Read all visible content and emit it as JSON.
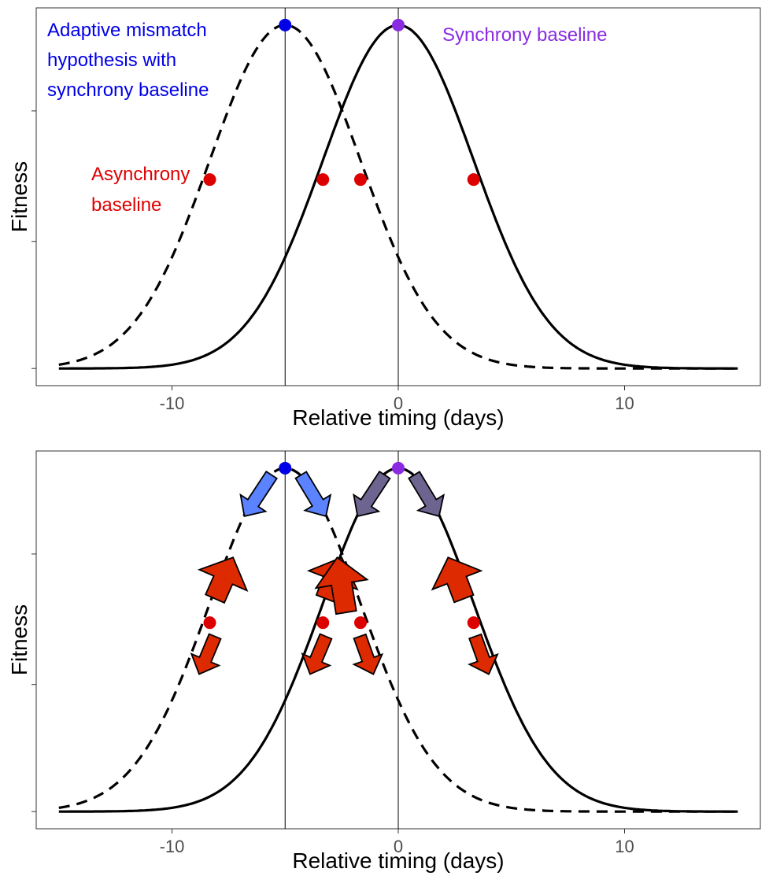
{
  "chart_data": [
    {
      "type": "line",
      "panel": "top",
      "xlabel": "Relative timing (days)",
      "ylabel": "Fitness",
      "xlim": [
        -16,
        16
      ],
      "ylim": [
        -0.05,
        1.05
      ],
      "x_ticks": [
        -10,
        0,
        10
      ],
      "x_tick_labels": [
        "-10",
        "0",
        "10"
      ],
      "y_ticks": [
        0,
        0.37,
        0.75
      ],
      "grid": false,
      "vlines": [
        -5,
        0
      ],
      "series": [
        {
          "style": "solid",
          "curve": "gaussian",
          "mean": 0,
          "sd": 3.33,
          "peak": 1,
          "x_range": [
            -15,
            15
          ],
          "color": "#000000"
        },
        {
          "style": "dashed",
          "curve": "gaussian",
          "mean": -5,
          "sd": 3.33,
          "peak": 1,
          "x_range": [
            -15,
            15
          ],
          "color": "#000000"
        }
      ],
      "points": [
        {
          "x": -5,
          "y": 1,
          "color": "#0000e6"
        },
        {
          "x": 0,
          "y": 1,
          "color": "#8a2be2"
        },
        {
          "x": -8.33,
          "y": 0.55,
          "color": "#dd0000"
        },
        {
          "x": -3.33,
          "y": 0.55,
          "color": "#dd0000"
        },
        {
          "x": -1.67,
          "y": 0.55,
          "color": "#dd0000"
        },
        {
          "x": 3.33,
          "y": 0.55,
          "color": "#dd0000"
        }
      ],
      "annotations": [
        {
          "lines": [
            "Adaptive mismatch",
            "hypothesis with",
            "synchrony baseline"
          ],
          "color": "#0000e6"
        },
        {
          "lines": [
            "Synchrony baseline"
          ],
          "color": "#8a2be2"
        },
        {
          "lines": [
            "Asynchrony",
            "baseline"
          ],
          "color": "#dd0000"
        }
      ]
    },
    {
      "type": "line",
      "panel": "bottom",
      "xlabel": "Relative timing (days)",
      "ylabel": "Fitness",
      "xlim": [
        -16,
        16
      ],
      "ylim": [
        -0.05,
        1.05
      ],
      "x_ticks": [
        -10,
        0,
        10
      ],
      "x_tick_labels": [
        "-10",
        "0",
        "10"
      ],
      "y_ticks": [
        0,
        0.37,
        0.75
      ],
      "grid": false,
      "vlines": [
        -5,
        0
      ],
      "series": [
        {
          "style": "solid",
          "curve": "gaussian",
          "mean": 0,
          "sd": 3.33,
          "peak": 1,
          "x_range": [
            -15,
            15
          ],
          "color": "#000000"
        },
        {
          "style": "dashed",
          "curve": "gaussian",
          "mean": -5,
          "sd": 3.33,
          "peak": 1,
          "x_range": [
            -15,
            15
          ],
          "color": "#000000"
        }
      ],
      "points": [
        {
          "x": -5,
          "y": 1,
          "color": "#0000e6"
        },
        {
          "x": 0,
          "y": 1,
          "color": "#8a2be2"
        },
        {
          "x": -8.33,
          "y": 0.55,
          "color": "#dd0000"
        },
        {
          "x": -3.33,
          "y": 0.55,
          "color": "#dd0000"
        },
        {
          "x": -1.67,
          "y": 0.55,
          "color": "#dd0000"
        },
        {
          "x": 3.33,
          "y": 0.55,
          "color": "#dd0000"
        }
      ],
      "arrows": [
        {
          "from": [
            -5.6,
            0.98
          ],
          "to": [
            -6.8,
            0.86
          ],
          "color": "#5b82ff",
          "size": "small"
        },
        {
          "from": [
            -4.3,
            0.98
          ],
          "to": [
            -3.2,
            0.86
          ],
          "color": "#5b82ff",
          "size": "small"
        },
        {
          "from": [
            -0.6,
            0.98
          ],
          "to": [
            -1.8,
            0.86
          ],
          "color": "#6e6490",
          "size": "small"
        },
        {
          "from": [
            0.7,
            0.98
          ],
          "to": [
            1.8,
            0.86
          ],
          "color": "#6e6490",
          "size": "small"
        },
        {
          "from": [
            -8.1,
            0.62
          ],
          "to": [
            -7.3,
            0.74
          ],
          "color": "#dd2a00",
          "size": "large"
        },
        {
          "from": [
            -3.2,
            0.62
          ],
          "to": [
            -2.5,
            0.74
          ],
          "color": "#dd2a00",
          "size": "large"
        },
        {
          "from": [
            -2.3,
            0.58
          ],
          "to": [
            -2.7,
            0.74
          ],
          "color": "#dd2a00",
          "size": "large"
        },
        {
          "from": [
            2.9,
            0.62
          ],
          "to": [
            2.2,
            0.74
          ],
          "color": "#dd2a00",
          "size": "large"
        },
        {
          "from": [
            -8.1,
            0.51
          ],
          "to": [
            -8.8,
            0.4
          ],
          "color": "#dd2a00",
          "size": "small"
        },
        {
          "from": [
            -3.2,
            0.51
          ],
          "to": [
            -3.9,
            0.4
          ],
          "color": "#dd2a00",
          "size": "small"
        },
        {
          "from": [
            -1.7,
            0.51
          ],
          "to": [
            -1.1,
            0.4
          ],
          "color": "#dd2a00",
          "size": "small"
        },
        {
          "from": [
            3.4,
            0.51
          ],
          "to": [
            4.0,
            0.4
          ],
          "color": "#dd2a00",
          "size": "small"
        }
      ]
    }
  ]
}
